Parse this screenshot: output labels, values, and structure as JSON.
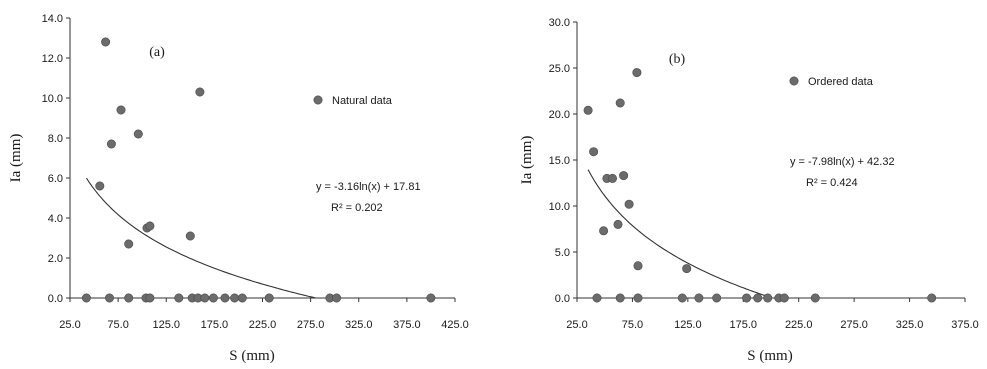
{
  "chart_data": [
    {
      "type": "scatter",
      "panel_label": "(a)",
      "xlabel": "S (mm)",
      "ylabel": "Ia (mm)",
      "xlim": [
        25.0,
        425.0
      ],
      "ylim": [
        0.0,
        14.0
      ],
      "x_ticks": [
        "25.0",
        "75.0",
        "125.0",
        "175.0",
        "225.0",
        "275.0",
        "325.0",
        "375.0",
        "425.0"
      ],
      "y_ticks": [
        "0.0",
        "2.0",
        "4.0",
        "6.0",
        "8.0",
        "10.0",
        "12.0",
        "14.0"
      ],
      "legend_position": "top-right",
      "series": [
        {
          "name": "Natural data",
          "color": "#6b6b6b",
          "points": [
            [
              62,
              12.8
            ],
            [
              68,
              7.7
            ],
            [
              78,
              9.4
            ],
            [
              96,
              8.2
            ],
            [
              160,
              10.3
            ],
            [
              56,
              5.6
            ],
            [
              86,
              2.7
            ],
            [
              105,
              3.5
            ],
            [
              108,
              3.6
            ],
            [
              150,
              3.1
            ],
            [
              42,
              0.0
            ],
            [
              66,
              0.0
            ],
            [
              86,
              0.0
            ],
            [
              104,
              0.0
            ],
            [
              108,
              0.0
            ],
            [
              138,
              0.0
            ],
            [
              152,
              0.0
            ],
            [
              158,
              0.0
            ],
            [
              165,
              0.0
            ],
            [
              174,
              0.0
            ],
            [
              186,
              0.0
            ],
            [
              196,
              0.0
            ],
            [
              204,
              0.0
            ],
            [
              232,
              0.0
            ],
            [
              295,
              0.0
            ],
            [
              302,
              0.0
            ],
            [
              400,
              0.0
            ]
          ]
        }
      ],
      "trendline": {
        "equation": "y = -3.16ln(x) + 17.81",
        "r_squared": "R² = 0.202",
        "a": -3.16,
        "b": 17.81,
        "x_range": [
          42,
          280
        ]
      }
    },
    {
      "type": "scatter",
      "panel_label": "(b)",
      "xlabel": "S (mm)",
      "ylabel": "Ia (mm)",
      "xlim": [
        25.0,
        375.0
      ],
      "ylim": [
        0.0,
        30.0
      ],
      "x_ticks": [
        "25.0",
        "75.0",
        "125.0",
        "175.0",
        "225.0",
        "275.0",
        "325.0",
        "375.0"
      ],
      "y_ticks": [
        "0.0",
        "5.0",
        "10.0",
        "15.0",
        "20.0",
        "25.0",
        "30.0"
      ],
      "legend_position": "top-right",
      "series": [
        {
          "name": "Ordered data",
          "color": "#6b6b6b",
          "points": [
            [
              35,
              20.4
            ],
            [
              40,
              15.9
            ],
            [
              64,
              21.2
            ],
            [
              79,
              24.5
            ],
            [
              52,
              13.0
            ],
            [
              57,
              13.0
            ],
            [
              67,
              13.3
            ],
            [
              72,
              10.2
            ],
            [
              49,
              7.3
            ],
            [
              62,
              8.0
            ],
            [
              80,
              3.5
            ],
            [
              124,
              3.2
            ],
            [
              43,
              0.0
            ],
            [
              64,
              0.0
            ],
            [
              80,
              0.0
            ],
            [
              120,
              0.0
            ],
            [
              135,
              0.0
            ],
            [
              151,
              0.0
            ],
            [
              178,
              0.0
            ],
            [
              188,
              0.0
            ],
            [
              197,
              0.0
            ],
            [
              207,
              0.0
            ],
            [
              212,
              0.0
            ],
            [
              240,
              0.0
            ],
            [
              345,
              0.0
            ]
          ]
        }
      ],
      "trendline": {
        "equation": "y = -7.98ln(x) + 42.32",
        "r_squared": "R² = 0.424",
        "a": -7.98,
        "b": 42.32,
        "x_range": [
          35,
          200
        ]
      }
    }
  ]
}
